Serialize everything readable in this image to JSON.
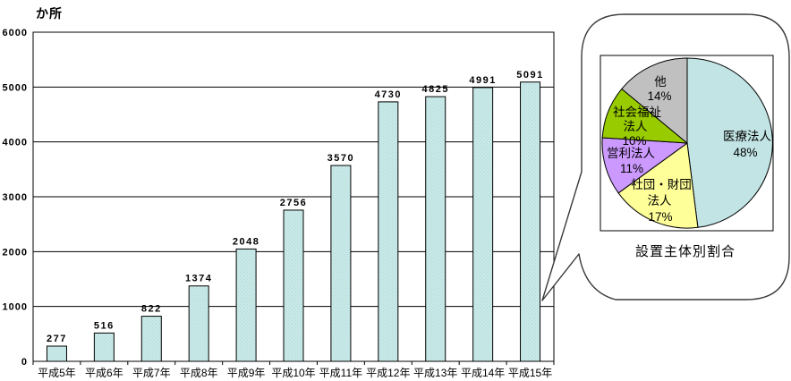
{
  "chart_data": [
    {
      "type": "bar",
      "unit_label": "か所",
      "categories": [
        "平成5年",
        "平成6年",
        "平成7年",
        "平成8年",
        "平成9年",
        "平成10年",
        "平成11年",
        "平成12年",
        "平成13年",
        "平成14年",
        "平成15年"
      ],
      "values": [
        277,
        516,
        822,
        1374,
        2048,
        2756,
        3570,
        4730,
        4825,
        4991,
        5091
      ],
      "ylim": [
        0,
        6000
      ],
      "yticks": [
        0,
        1000,
        2000,
        3000,
        4000,
        5000,
        6000
      ],
      "grid": true,
      "value_labels_shown": true,
      "bar_color": "#C7E8E6",
      "bar_texture_color": "#AFDCDA",
      "bar_stroke": "#000000",
      "legend": "none"
    },
    {
      "type": "pie",
      "title": "設置主体別割合",
      "direction": "clockwise",
      "start_angle_deg": 0,
      "outline_color": "#000000",
      "slices": [
        {
          "label": "医療法人",
          "value_pct": 48,
          "color": "#C2E4E4",
          "label_lines": [
            "医療法人",
            "48%"
          ]
        },
        {
          "label": "社団・財団法人",
          "value_pct": 17,
          "color": "#FFFF99",
          "label_lines": [
            "社団・財団",
            "法人",
            "17%"
          ]
        },
        {
          "label": "営利法人",
          "value_pct": 11,
          "color": "#CC99FF",
          "label_lines": [
            "営利法人",
            "11%"
          ]
        },
        {
          "label": "社会福祉法人",
          "value_pct": 10,
          "color": "#99CC00",
          "label_lines": [
            "社会福祉",
            "法人",
            "10%"
          ]
        },
        {
          "label": "他",
          "value_pct": 14,
          "color": "#C0C0C0",
          "label_lines": [
            "他",
            "14%"
          ]
        }
      ]
    }
  ],
  "callout": {
    "shape": "rounded-speech-bubble",
    "stroke_color": "#3a3a3a",
    "fill_color": "#FFFFFF"
  }
}
